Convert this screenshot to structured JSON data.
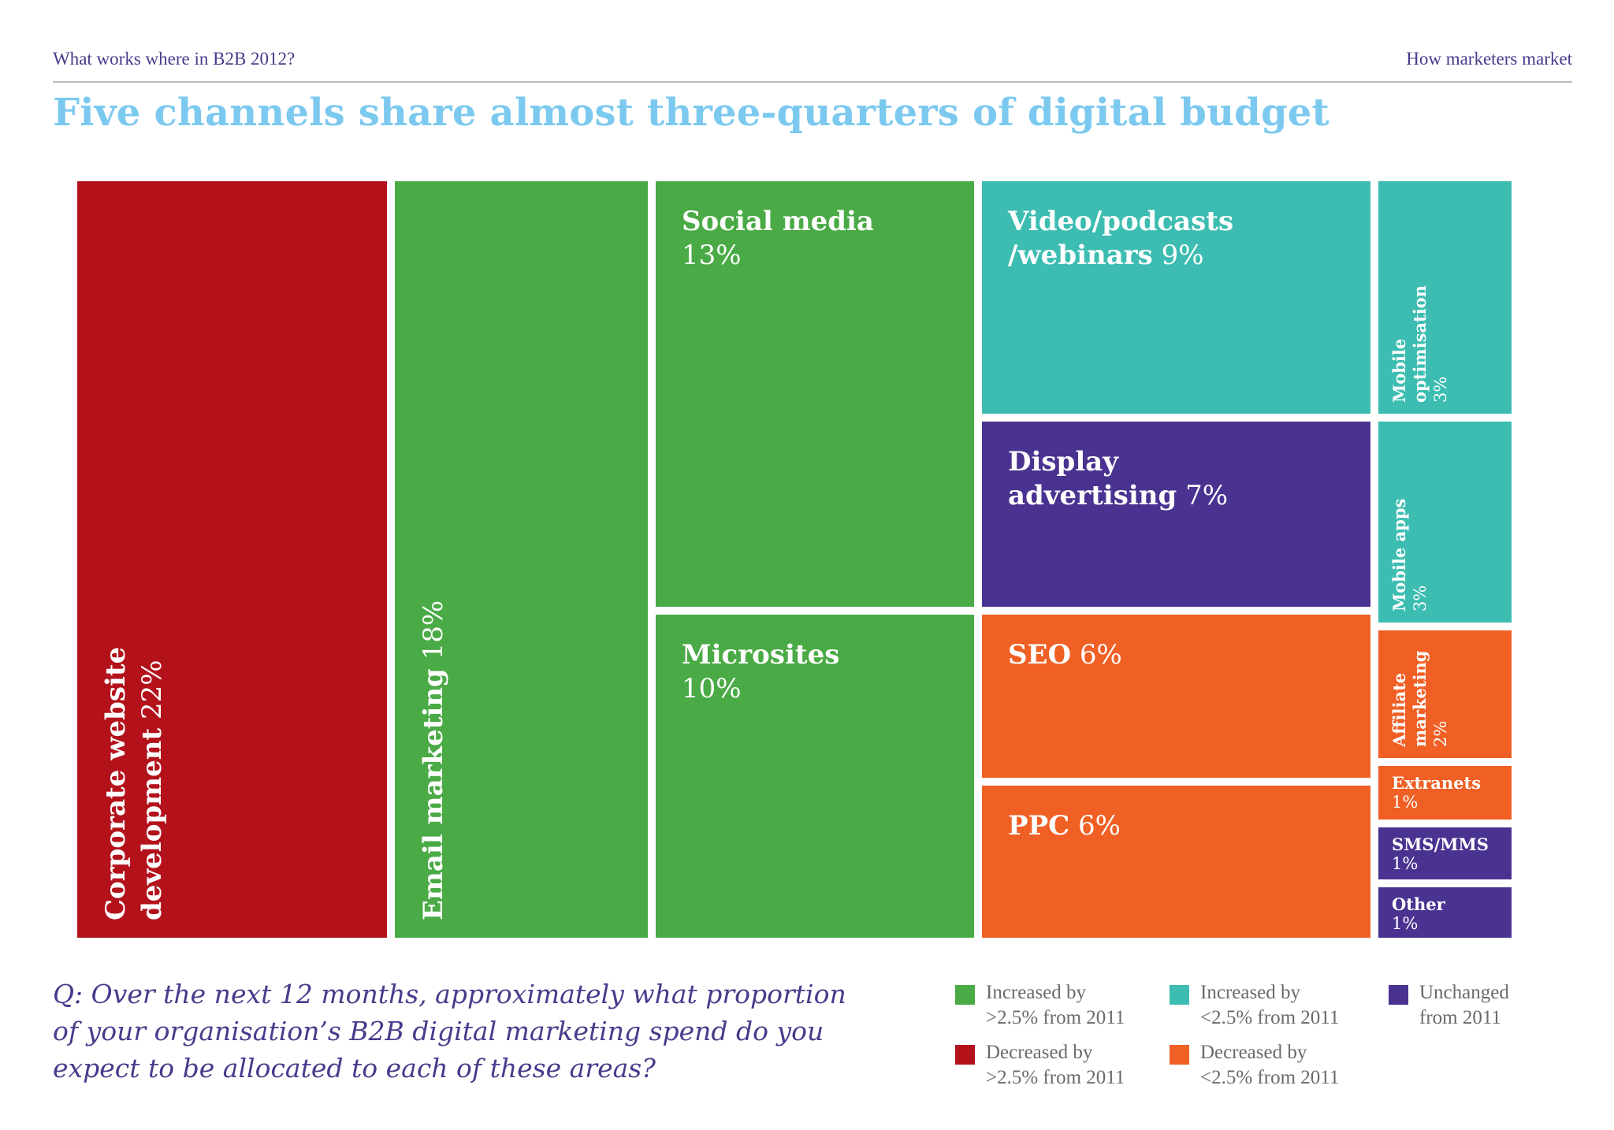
{
  "header": {
    "left": "What works where in B2B 2012?",
    "right": "How marketers market"
  },
  "title": "Five channels share almost three-quarters of digital budget",
  "question": "Q: Over the next 12 months, approximately what proportion of your organisation’s B2B digital marketing spend do you expect to be allocated to each of these areas?",
  "colors": {
    "increased_gt": "#4aaa45",
    "increased_lt": "#3dbdb1",
    "unchanged": "#4a3290",
    "decreased_gt": "#b3121b",
    "decreased_lt": "#f05f24"
  },
  "legend": [
    {
      "key": "increased_gt",
      "line1": "Increased by",
      "line2": ">2.5% from 2011"
    },
    {
      "key": "increased_lt",
      "line1": "Increased by",
      "line2": "<2.5% from 2011"
    },
    {
      "key": "unchanged",
      "line1": "Unchanged",
      "line2": "from 2011"
    },
    {
      "key": "decreased_gt",
      "line1": "Decreased by",
      "line2": ">2.5% from 2011"
    },
    {
      "key": "decreased_lt",
      "line1": "Decreased by",
      "line2": "<2.5% from 2011"
    }
  ],
  "chart_data": {
    "type": "treemap",
    "unit": "%",
    "items": [
      {
        "label": "Corporate website development",
        "value": 22,
        "category": "decreased_gt",
        "text_lines": [
          "Corporate website",
          "development 22%"
        ]
      },
      {
        "label": "Email marketing",
        "value": 18,
        "category": "increased_gt",
        "text_lines": [
          "Email marketing 18%"
        ]
      },
      {
        "label": "Social media",
        "value": 13,
        "category": "increased_gt",
        "text_lines": [
          "Social media",
          "13%"
        ]
      },
      {
        "label": "Microsites",
        "value": 10,
        "category": "increased_gt",
        "text_lines": [
          "Microsites",
          "10%"
        ]
      },
      {
        "label": "Video/podcasts/webinars",
        "value": 9,
        "category": "increased_lt",
        "text_lines": [
          "Video/podcasts",
          "/webinars 9%"
        ]
      },
      {
        "label": "Display advertising",
        "value": 7,
        "category": "unchanged",
        "text_lines": [
          "Display",
          "advertising 7%"
        ]
      },
      {
        "label": "SEO",
        "value": 6,
        "category": "decreased_lt",
        "text_lines": [
          "SEO 6%"
        ]
      },
      {
        "label": "PPC",
        "value": 6,
        "category": "decreased_lt",
        "text_lines": [
          "PPC 6%"
        ]
      },
      {
        "label": "Mobile optimisation",
        "value": 3,
        "category": "increased_lt",
        "text_lines": [
          "Mobile",
          "optimisation",
          "3%"
        ]
      },
      {
        "label": "Mobile apps",
        "value": 3,
        "category": "increased_lt",
        "text_lines": [
          "Mobile apps",
          "3%"
        ]
      },
      {
        "label": "Affiliate marketing",
        "value": 2,
        "category": "decreased_lt",
        "text_lines": [
          "Affiliate",
          "marketing",
          "2%"
        ]
      },
      {
        "label": "Extranets",
        "value": 1,
        "category": "decreased_lt",
        "text_lines": [
          "Extranets",
          "1%"
        ]
      },
      {
        "label": "SMS/MMS",
        "value": 1,
        "category": "unchanged",
        "text_lines": [
          "SMS/MMS",
          "1%"
        ]
      },
      {
        "label": "Other",
        "value": 1,
        "category": "unchanged",
        "text_lines": [
          "Other",
          "1%"
        ]
      }
    ]
  }
}
